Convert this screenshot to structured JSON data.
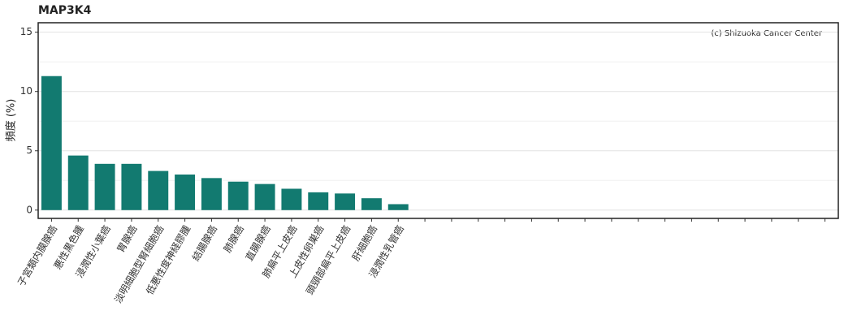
{
  "chart_data": {
    "type": "bar",
    "title": "MAP3K4",
    "ylabel": "頻度 (%)",
    "annotation": "(c) Shizuoka Cancer Center",
    "categories": [
      "子宮類内膜腺癌",
      "悪性黒色腫",
      "浸潤性小葉癌",
      "胃腺癌",
      "淡明細胞型腎細胞癌",
      "低悪性度神経膠腫",
      "結腸腺癌",
      "肺腺癌",
      "直腸腺癌",
      "肺扁平上皮癌",
      "上皮性卵巣癌",
      "頭頸部扁平上皮癌",
      "肝細胞癌",
      "浸潤性乳管癌",
      null,
      null,
      null,
      null,
      null,
      null,
      null,
      null,
      null,
      null,
      null,
      null,
      null,
      null,
      null,
      null
    ],
    "values": [
      11.3,
      4.6,
      3.9,
      3.9,
      3.3,
      3.0,
      2.7,
      2.4,
      2.2,
      1.8,
      1.5,
      1.4,
      1.0,
      0.5,
      null,
      null,
      null,
      null,
      null,
      null,
      null,
      null,
      null,
      null,
      null,
      null,
      null,
      null,
      null,
      null
    ],
    "color": "#127a70",
    "ylim": [
      -0.7,
      15.8
    ],
    "yticks": [
      0,
      5,
      10,
      15
    ],
    "minor_yticks": [
      2.5,
      7.5,
      12.5
    ],
    "grid": true
  }
}
